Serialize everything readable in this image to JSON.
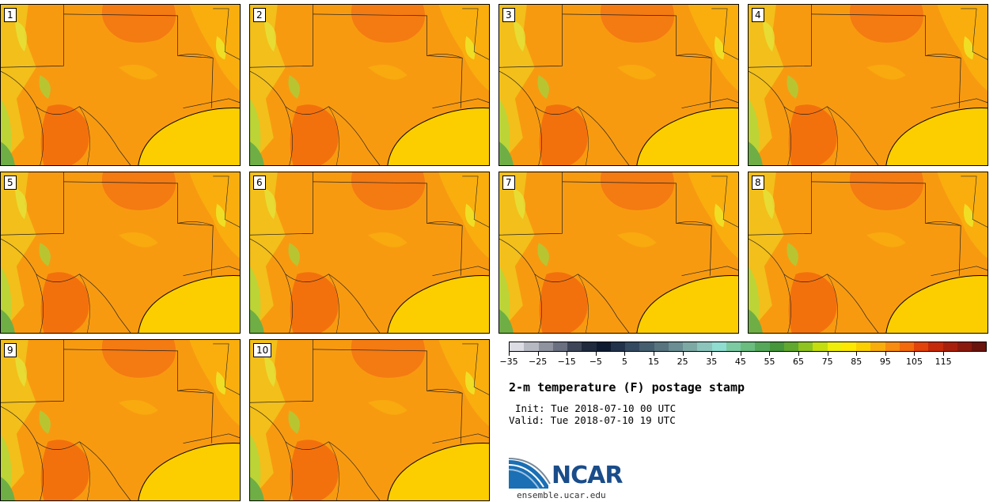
{
  "stamps": [
    {
      "label": "1"
    },
    {
      "label": "2"
    },
    {
      "label": "3"
    },
    {
      "label": "4"
    },
    {
      "label": "5"
    },
    {
      "label": "6"
    },
    {
      "label": "7"
    },
    {
      "label": "8"
    },
    {
      "label": "9"
    },
    {
      "label": "10"
    }
  ],
  "colorbar": {
    "colors": [
      "#dcdde4",
      "#b6b8c2",
      "#8f93a0",
      "#6a7080",
      "#3d4658",
      "#1f2a3e",
      "#0e1a30",
      "#22324a",
      "#344a60",
      "#465f70",
      "#57747f",
      "#6a8e93",
      "#7da9a5",
      "#8cc4bb",
      "#8fdcd0",
      "#7ccaa2",
      "#6bbc7f",
      "#55a85a",
      "#46963c",
      "#60a830",
      "#8fc31f",
      "#c3dd0f",
      "#eeee0a",
      "#fce800",
      "#fbd000",
      "#f9ad0c",
      "#f78c10",
      "#f26a0c",
      "#e1430a",
      "#c52a0a",
      "#a8200c",
      "#8a1a0e",
      "#6a140e"
    ],
    "tick_labels": [
      "−35",
      "−25",
      "−15",
      "−5",
      "5",
      "15",
      "25",
      "35",
      "45",
      "55",
      "65",
      "75",
      "85",
      "95",
      "105",
      "115"
    ]
  },
  "title": "2-m temperature (F) postage stamp",
  "init": "Init: Tue 2018-07-10 00 UTC",
  "valid": "Valid: Tue 2018-07-10 19 UTC",
  "logo": {
    "text": "NCAR",
    "site": "ensemble.ucar.edu"
  }
}
